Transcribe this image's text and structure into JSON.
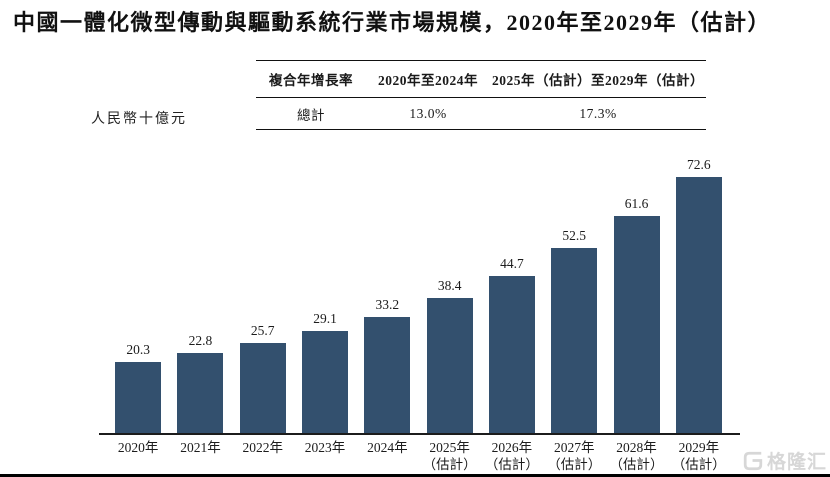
{
  "page": {
    "title": "中國一體化微型傳動與驅動系統行業市場規模，2020年至2029年（估計）",
    "unit_label": "人民幣十億元"
  },
  "cagr_table": {
    "header": [
      "複合年增長率",
      "2020年至2024年",
      "2025年（估計）至2029年（估計）"
    ],
    "row": [
      "總計",
      "13.0%",
      "17.3%"
    ]
  },
  "watermark": {
    "icon": "gelonghui-logo-icon",
    "text": "格隆汇"
  },
  "chart_data": {
    "type": "bar",
    "title": "中國一體化微型傳動與驅動系統行業市場規模，2020年至2029年（估計）",
    "ylabel": "人民幣十億元",
    "categories": [
      "2020年",
      "2021年",
      "2022年",
      "2023年",
      "2024年",
      "2025年",
      "2026年",
      "2027年",
      "2028年",
      "2029年"
    ],
    "category_notes": [
      "",
      "",
      "",
      "",
      "",
      "（估計）",
      "（估計）",
      "（估計）",
      "（估計）",
      "（估計）"
    ],
    "values": [
      20.3,
      22.8,
      25.7,
      29.1,
      33.2,
      38.4,
      44.7,
      52.5,
      61.6,
      72.6
    ],
    "value_labels_shown": true,
    "bar_color": "#33506e",
    "axis_color": "#1c1c1c",
    "ylim": [
      0,
      80
    ],
    "grid": false,
    "legend": null,
    "cagr_2020_2024": "13.0%",
    "cagr_2025e_2029e": "17.3%"
  }
}
